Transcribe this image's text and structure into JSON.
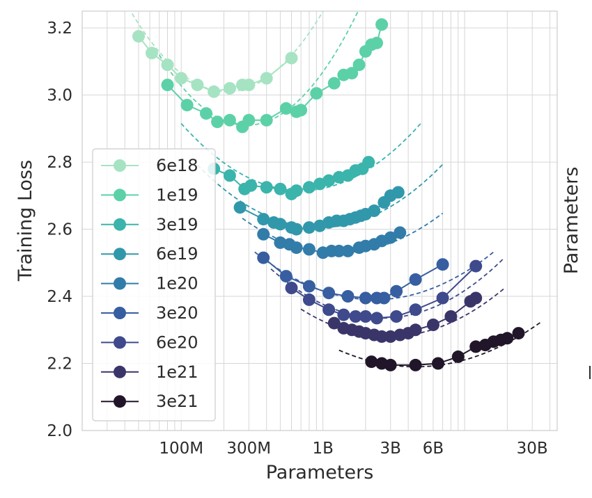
{
  "chart_data": {
    "type": "scatter",
    "title": "",
    "xlabel": "Parameters",
    "ylabel": "Training Loss",
    "right_label": "Parameters",
    "x_scale": "log",
    "xlim": [
      20000000,
      45000000000
    ],
    "ylim": [
      2.0,
      3.25
    ],
    "grid": true,
    "xticks": [
      {
        "value": 100000000,
        "label": "100M"
      },
      {
        "value": 300000000,
        "label": "300M"
      },
      {
        "value": 1000000000,
        "label": "1B"
      },
      {
        "value": 3000000000,
        "label": "3B"
      },
      {
        "value": 6000000000,
        "label": "6B"
      },
      {
        "value": 30000000000,
        "label": "30B"
      }
    ],
    "yticks": [
      {
        "value": 2.0,
        "label": "2.0"
      },
      {
        "value": 2.2,
        "label": "2.2"
      },
      {
        "value": 2.4,
        "label": "2.4"
      },
      {
        "value": 2.6,
        "label": "2.6"
      },
      {
        "value": 2.8,
        "label": "2.8"
      },
      {
        "value": 3.0,
        "label": "3.0"
      },
      {
        "value": 3.2,
        "label": "3.2"
      }
    ],
    "legend_position": "lower-left",
    "series": [
      {
        "name": "6e18",
        "color": "#a6e3c2",
        "points": [
          [
            50000000,
            3.175
          ],
          [
            62000000,
            3.125
          ],
          [
            80000000,
            3.09
          ],
          [
            100000000,
            3.05
          ],
          [
            130000000,
            3.03
          ],
          [
            170000000,
            3.01
          ],
          [
            220000000,
            3.02
          ],
          [
            270000000,
            3.03
          ],
          [
            300000000,
            3.03
          ],
          [
            400000000,
            3.05
          ],
          [
            600000000,
            3.11
          ]
        ],
        "fit": {
          "a": 3.01,
          "c": 0.52,
          "m": 210000000,
          "xmin": 38000000,
          "xmax": 1200000000
        }
      },
      {
        "name": "1e19",
        "color": "#5cd1a7",
        "points": [
          [
            80000000,
            3.03
          ],
          [
            110000000,
            2.97
          ],
          [
            150000000,
            2.945
          ],
          [
            180000000,
            2.92
          ],
          [
            220000000,
            2.925
          ],
          [
            270000000,
            2.905
          ],
          [
            300000000,
            2.925
          ],
          [
            400000000,
            2.925
          ],
          [
            550000000,
            2.96
          ],
          [
            650000000,
            2.95
          ],
          [
            700000000,
            2.955
          ],
          [
            900000000,
            3.005
          ],
          [
            1200000000,
            3.035
          ],
          [
            1400000000,
            3.06
          ],
          [
            1600000000,
            3.065
          ],
          [
            1800000000,
            3.09
          ],
          [
            2000000000,
            3.13
          ],
          [
            2200000000,
            3.15
          ],
          [
            2400000000,
            3.155
          ],
          [
            2600000000,
            3.21
          ]
        ],
        "fit": {
          "a": 2.91,
          "c": 0.55,
          "m": 290000000,
          "xmin": 70000000,
          "xmax": 3000000000
        }
      },
      {
        "name": "3e19",
        "color": "#3bb4ac",
        "points": [
          [
            170000000,
            2.78
          ],
          [
            220000000,
            2.76
          ],
          [
            280000000,
            2.72
          ],
          [
            310000000,
            2.73
          ],
          [
            400000000,
            2.725
          ],
          [
            500000000,
            2.72
          ],
          [
            600000000,
            2.705
          ],
          [
            650000000,
            2.715
          ],
          [
            800000000,
            2.725
          ],
          [
            950000000,
            2.735
          ],
          [
            1100000000,
            2.745
          ],
          [
            1300000000,
            2.755
          ],
          [
            1500000000,
            2.76
          ],
          [
            1700000000,
            2.775
          ],
          [
            1900000000,
            2.78
          ],
          [
            2100000000,
            2.8
          ]
        ],
        "fit": {
          "a": 2.715,
          "c": 0.28,
          "m": 700000000,
          "xmin": 100000000,
          "xmax": 5000000000
        }
      },
      {
        "name": "6e19",
        "color": "#3198ab",
        "points": [
          [
            260000000,
            2.665
          ],
          [
            380000000,
            2.63
          ],
          [
            450000000,
            2.62
          ],
          [
            500000000,
            2.615
          ],
          [
            600000000,
            2.605
          ],
          [
            650000000,
            2.6
          ],
          [
            800000000,
            2.605
          ],
          [
            950000000,
            2.61
          ],
          [
            1100000000,
            2.62
          ],
          [
            1250000000,
            2.625
          ],
          [
            1400000000,
            2.625
          ],
          [
            1550000000,
            2.63
          ],
          [
            1700000000,
            2.635
          ],
          [
            1850000000,
            2.64
          ],
          [
            2000000000,
            2.645
          ],
          [
            2300000000,
            2.655
          ],
          [
            2700000000,
            2.68
          ],
          [
            3000000000,
            2.7
          ],
          [
            3400000000,
            2.71
          ]
        ],
        "fit": {
          "a": 2.605,
          "c": 0.25,
          "m": 950000000,
          "xmin": 130000000,
          "xmax": 7000000000
        }
      },
      {
        "name": "1e20",
        "color": "#327caa",
        "points": [
          [
            380000000,
            2.585
          ],
          [
            500000000,
            2.56
          ],
          [
            580000000,
            2.555
          ],
          [
            650000000,
            2.545
          ],
          [
            800000000,
            2.54
          ],
          [
            1000000000,
            2.53
          ],
          [
            1150000000,
            2.535
          ],
          [
            1300000000,
            2.535
          ],
          [
            1500000000,
            2.535
          ],
          [
            1800000000,
            2.545
          ],
          [
            2000000000,
            2.55
          ],
          [
            2300000000,
            2.555
          ],
          [
            2600000000,
            2.565
          ],
          [
            3000000000,
            2.575
          ],
          [
            3500000000,
            2.59
          ]
        ],
        "fit": {
          "a": 2.53,
          "c": 0.22,
          "m": 1300000000,
          "xmin": 270000000,
          "xmax": 7000000000
        }
      },
      {
        "name": "3e20",
        "color": "#375ea0",
        "points": [
          [
            380000000,
            2.515
          ],
          [
            550000000,
            2.46
          ],
          [
            800000000,
            2.43
          ],
          [
            1100000000,
            2.41
          ],
          [
            1500000000,
            2.4
          ],
          [
            2000000000,
            2.395
          ],
          [
            2400000000,
            2.395
          ],
          [
            2700000000,
            2.395
          ],
          [
            3300000000,
            2.415
          ],
          [
            4500000000,
            2.45
          ],
          [
            7000000000,
            2.495
          ]
        ],
        "fit": {
          "a": 2.39,
          "c": 0.2,
          "m": 2300000000,
          "xmin": 330000000,
          "xmax": 16000000000
        }
      },
      {
        "name": "6e20",
        "color": "#3e4a8c",
        "points": [
          [
            600000000,
            2.425
          ],
          [
            800000000,
            2.39
          ],
          [
            1100000000,
            2.36
          ],
          [
            1400000000,
            2.345
          ],
          [
            1700000000,
            2.34
          ],
          [
            2000000000,
            2.34
          ],
          [
            2400000000,
            2.335
          ],
          [
            3300000000,
            2.34
          ],
          [
            4500000000,
            2.36
          ],
          [
            7000000000,
            2.395
          ],
          [
            12000000000,
            2.49
          ]
        ],
        "fit": {
          "a": 2.335,
          "c": 0.24,
          "m": 2600000000,
          "xmin": 430000000,
          "xmax": 19000000000
        }
      },
      {
        "name": "1e21",
        "color": "#3a3569",
        "points": [
          [
            1200000000,
            2.32
          ],
          [
            1400000000,
            2.305
          ],
          [
            1600000000,
            2.3
          ],
          [
            1800000000,
            2.295
          ],
          [
            2000000000,
            2.29
          ],
          [
            2300000000,
            2.285
          ],
          [
            2600000000,
            2.28
          ],
          [
            3000000000,
            2.28
          ],
          [
            3500000000,
            2.285
          ],
          [
            4000000000,
            2.29
          ],
          [
            4500000000,
            2.3
          ],
          [
            6000000000,
            2.315
          ],
          [
            8000000000,
            2.34
          ],
          [
            11000000000,
            2.385
          ],
          [
            12000000000,
            2.395
          ]
        ],
        "fit": {
          "a": 2.28,
          "c": 0.215,
          "m": 2900000000,
          "xmin": 700000000,
          "xmax": 19000000000
        }
      },
      {
        "name": "3e21",
        "color": "#211629",
        "points": [
          [
            2200000000,
            2.205
          ],
          [
            2600000000,
            2.2
          ],
          [
            3000000000,
            2.195
          ],
          [
            4500000000,
            2.195
          ],
          [
            6500000000,
            2.2
          ],
          [
            9000000000,
            2.22
          ],
          [
            12000000000,
            2.25
          ],
          [
            14000000000,
            2.255
          ],
          [
            16000000000,
            2.265
          ],
          [
            18000000000,
            2.27
          ],
          [
            20000000000,
            2.275
          ],
          [
            24000000000,
            2.29
          ]
        ],
        "fit": {
          "a": 2.19,
          "c": 0.17,
          "m": 4500000000,
          "xmin": 1300000000,
          "xmax": 35000000000
        }
      }
    ]
  }
}
